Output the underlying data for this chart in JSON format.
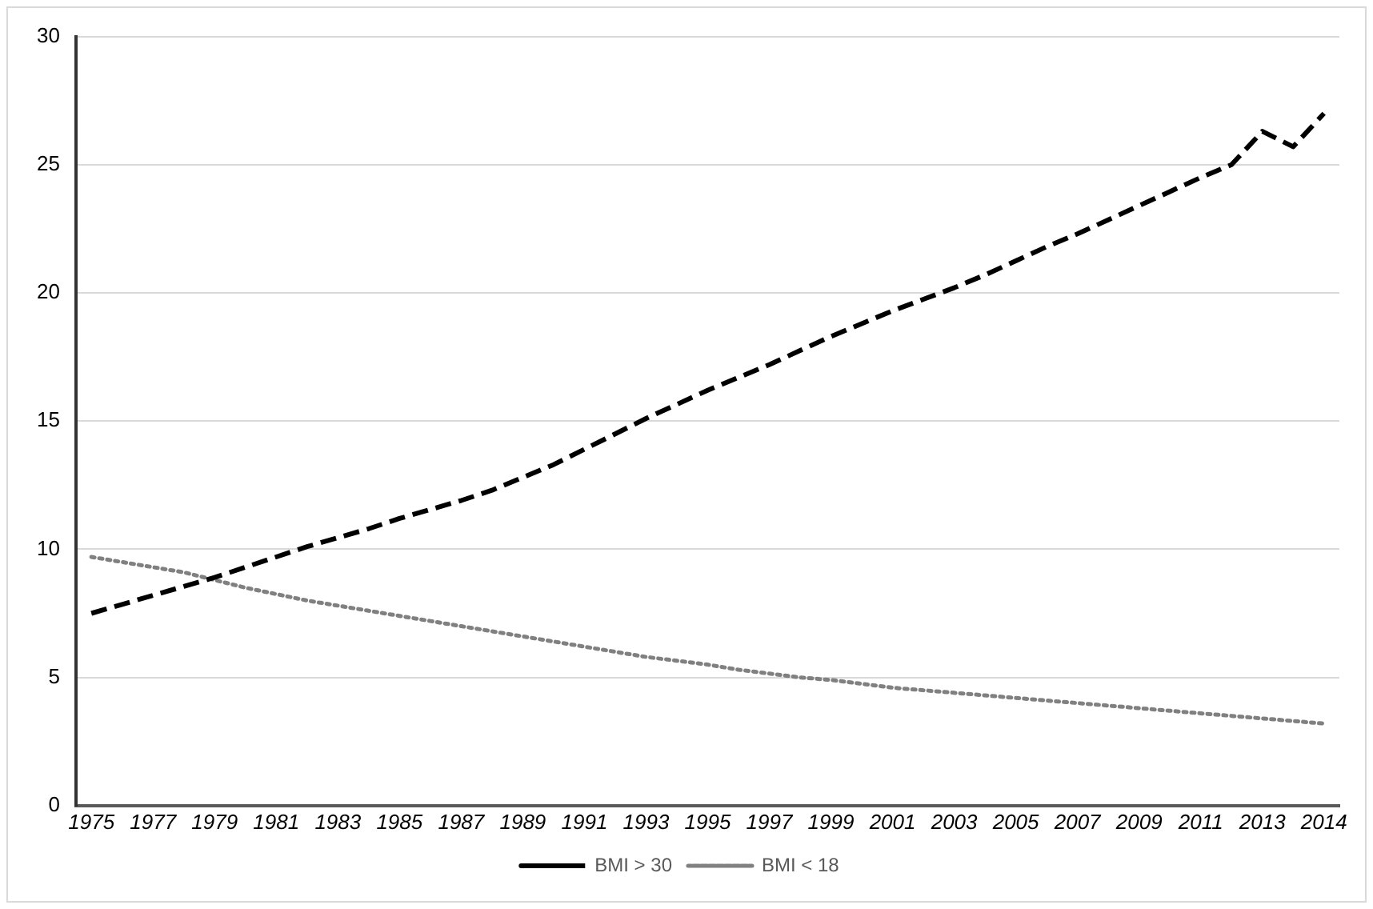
{
  "chart_data": {
    "type": "line",
    "categories": [
      "1975",
      null,
      "1977",
      null,
      "1979",
      null,
      "1981",
      null,
      "1983",
      null,
      "1985",
      null,
      "1987",
      null,
      "1989",
      null,
      "1991",
      null,
      "1993",
      null,
      "1995",
      null,
      "1997",
      null,
      "1999",
      null,
      "2001",
      null,
      "2003",
      null,
      "2005",
      null,
      "2007",
      null,
      "2009",
      null,
      "2011",
      null,
      "2013",
      null,
      "2014"
    ],
    "series": [
      {
        "name": "BMI > 30",
        "color": "#000000",
        "line_style": "dashed",
        "values": [
          7.5,
          7.85,
          8.2,
          8.55,
          8.9,
          9.3,
          9.7,
          10.1,
          10.45,
          10.8,
          11.2,
          11.55,
          11.9,
          12.3,
          12.8,
          13.3,
          13.9,
          14.5,
          15.1,
          15.65,
          16.2,
          16.7,
          17.2,
          17.75,
          18.3,
          18.8,
          19.3,
          19.75,
          20.2,
          20.7,
          21.25,
          21.8,
          22.3,
          22.85,
          23.4,
          23.95,
          24.5,
          25.0,
          26.3,
          25.7,
          27.0
        ]
      },
      {
        "name": "BMI < 18",
        "color": "#808080",
        "line_style": "dotted",
        "values": [
          9.7,
          9.5,
          9.3,
          9.1,
          8.8,
          8.5,
          8.25,
          8.0,
          7.8,
          7.6,
          7.4,
          7.2,
          7.0,
          6.8,
          6.6,
          6.4,
          6.2,
          6.0,
          5.8,
          5.65,
          5.5,
          5.3,
          5.15,
          5.0,
          4.9,
          4.75,
          4.6,
          4.5,
          4.4,
          4.3,
          4.2,
          4.1,
          4.0,
          3.9,
          3.8,
          3.7,
          3.6,
          3.5,
          3.4,
          3.3,
          3.2
        ]
      }
    ],
    "ylim": [
      0,
      30
    ],
    "yticks": [
      0,
      5,
      10,
      15,
      20,
      25,
      30
    ],
    "grid": "y",
    "legend": "bottom",
    "marker": "none"
  }
}
